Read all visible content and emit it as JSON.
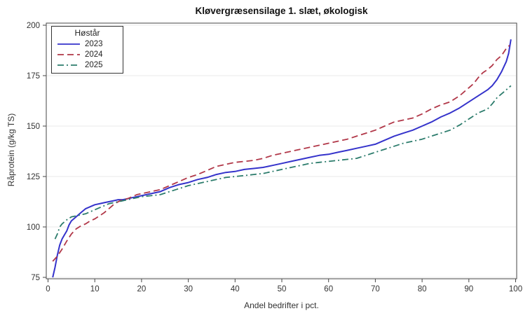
{
  "chart_data": {
    "type": "line",
    "title": "Kløvergræsensilage 1. slæt, økologisk",
    "xlabel": "Andel bedrifter i pct.",
    "ylabel": "Råprotein (g/kg TS)",
    "xlim": [
      0,
      100
    ],
    "ylim": [
      75,
      200
    ],
    "x_ticks": [
      0,
      10,
      20,
      30,
      40,
      50,
      60,
      70,
      80,
      90,
      100
    ],
    "y_ticks": [
      75,
      100,
      125,
      150,
      175,
      200
    ],
    "grid": "horizontal",
    "legend_title": "Høstår",
    "legend_position": "top-left",
    "frame_color": "#454545",
    "gridline_color": "#e8e8e8",
    "series": [
      {
        "name": "2023",
        "color": "#3533cb",
        "dash": "",
        "points": [
          [
            1,
            75
          ],
          [
            1.5,
            80
          ],
          [
            2,
            86
          ],
          [
            2.5,
            91
          ],
          [
            3,
            94
          ],
          [
            3.5,
            96
          ],
          [
            4,
            98
          ],
          [
            4.5,
            101
          ],
          [
            5,
            103
          ],
          [
            6,
            105
          ],
          [
            7,
            107
          ],
          [
            8,
            109
          ],
          [
            9,
            110
          ],
          [
            10,
            111
          ],
          [
            11,
            111.5
          ],
          [
            12,
            112
          ],
          [
            13,
            112.5
          ],
          [
            14,
            113
          ],
          [
            15,
            113.5
          ],
          [
            16,
            113.5
          ],
          [
            17,
            114
          ],
          [
            18,
            114.5
          ],
          [
            19,
            115
          ],
          [
            20,
            115.5
          ],
          [
            22,
            116.5
          ],
          [
            24,
            117.5
          ],
          [
            26,
            119.5
          ],
          [
            28,
            121
          ],
          [
            30,
            122
          ],
          [
            32,
            123.5
          ],
          [
            34,
            124.5
          ],
          [
            36,
            126
          ],
          [
            38,
            127
          ],
          [
            40,
            127.5
          ],
          [
            42,
            128.5
          ],
          [
            44,
            129
          ],
          [
            46,
            129.5
          ],
          [
            48,
            130.5
          ],
          [
            50,
            131.5
          ],
          [
            52,
            132.5
          ],
          [
            54,
            133.5
          ],
          [
            56,
            134.5
          ],
          [
            58,
            135.5
          ],
          [
            60,
            136
          ],
          [
            62,
            137
          ],
          [
            64,
            138
          ],
          [
            66,
            139
          ],
          [
            68,
            140
          ],
          [
            70,
            141
          ],
          [
            72,
            143
          ],
          [
            74,
            145
          ],
          [
            76,
            146.5
          ],
          [
            78,
            148
          ],
          [
            80,
            150
          ],
          [
            82,
            152
          ],
          [
            84,
            154.5
          ],
          [
            86,
            156.5
          ],
          [
            88,
            159
          ],
          [
            90,
            162
          ],
          [
            92,
            165
          ],
          [
            94,
            168
          ],
          [
            95,
            170
          ],
          [
            96,
            173
          ],
          [
            97,
            177
          ],
          [
            98,
            182
          ],
          [
            98.5,
            186
          ],
          [
            99,
            193
          ]
        ]
      },
      {
        "name": "2024",
        "color": "#b13748",
        "dash": "9,5",
        "points": [
          [
            1,
            83
          ],
          [
            2,
            85.5
          ],
          [
            3,
            89
          ],
          [
            4,
            93
          ],
          [
            5,
            96.5
          ],
          [
            6,
            99
          ],
          [
            7,
            100.5
          ],
          [
            8,
            101.5
          ],
          [
            9,
            103
          ],
          [
            10,
            104
          ],
          [
            11,
            105.5
          ],
          [
            12,
            107
          ],
          [
            13,
            109
          ],
          [
            14,
            111
          ],
          [
            15,
            112.5
          ],
          [
            16,
            113.5
          ],
          [
            17,
            114
          ],
          [
            18,
            115
          ],
          [
            19,
            116
          ],
          [
            20,
            116.5
          ],
          [
            22,
            117.5
          ],
          [
            24,
            118.5
          ],
          [
            26,
            120.5
          ],
          [
            28,
            122.5
          ],
          [
            30,
            124.5
          ],
          [
            32,
            126
          ],
          [
            34,
            128
          ],
          [
            36,
            130
          ],
          [
            38,
            131
          ],
          [
            40,
            132
          ],
          [
            42,
            132.5
          ],
          [
            44,
            133
          ],
          [
            46,
            134
          ],
          [
            48,
            135.5
          ],
          [
            50,
            136.5
          ],
          [
            52,
            137.5
          ],
          [
            54,
            138.5
          ],
          [
            56,
            139.5
          ],
          [
            58,
            140.5
          ],
          [
            60,
            141.5
          ],
          [
            62,
            142.5
          ],
          [
            64,
            143.5
          ],
          [
            66,
            145
          ],
          [
            68,
            146.5
          ],
          [
            70,
            148
          ],
          [
            72,
            150
          ],
          [
            74,
            152
          ],
          [
            76,
            153
          ],
          [
            78,
            154
          ],
          [
            80,
            156
          ],
          [
            82,
            158.5
          ],
          [
            84,
            160.5
          ],
          [
            86,
            162
          ],
          [
            88,
            165
          ],
          [
            90,
            169
          ],
          [
            91,
            171
          ],
          [
            92,
            174
          ],
          [
            93,
            176.5
          ],
          [
            94,
            178
          ],
          [
            95,
            180
          ],
          [
            96,
            183
          ],
          [
            97,
            185
          ],
          [
            98,
            188.5
          ],
          [
            98.7,
            190
          ]
        ]
      },
      {
        "name": "2025",
        "color": "#2c7c6c",
        "dash": "9,4,2,4",
        "points": [
          [
            1.5,
            94
          ],
          [
            2,
            96.5
          ],
          [
            2.5,
            100
          ],
          [
            3,
            101.5
          ],
          [
            4,
            103.5
          ],
          [
            5,
            105
          ],
          [
            6,
            105.5
          ],
          [
            7,
            106
          ],
          [
            8,
            106.5
          ],
          [
            9,
            107.5
          ],
          [
            10,
            108.5
          ],
          [
            11,
            109.5
          ],
          [
            12,
            110.5
          ],
          [
            13,
            111.5
          ],
          [
            14,
            112
          ],
          [
            15,
            112.5
          ],
          [
            16,
            113
          ],
          [
            17,
            113.5
          ],
          [
            18,
            114
          ],
          [
            19,
            114.5
          ],
          [
            20,
            115
          ],
          [
            22,
            115.5
          ],
          [
            24,
            116
          ],
          [
            26,
            117.5
          ],
          [
            28,
            119
          ],
          [
            30,
            120.5
          ],
          [
            32,
            121.5
          ],
          [
            34,
            122.5
          ],
          [
            36,
            123.5
          ],
          [
            38,
            124.5
          ],
          [
            40,
            125
          ],
          [
            42,
            125.5
          ],
          [
            44,
            126
          ],
          [
            46,
            126.5
          ],
          [
            48,
            127.5
          ],
          [
            50,
            128.5
          ],
          [
            52,
            129.5
          ],
          [
            54,
            130.5
          ],
          [
            56,
            131.5
          ],
          [
            58,
            132
          ],
          [
            60,
            132.5
          ],
          [
            62,
            133
          ],
          [
            64,
            133.5
          ],
          [
            66,
            134
          ],
          [
            68,
            135.5
          ],
          [
            70,
            137
          ],
          [
            72,
            138.5
          ],
          [
            74,
            140
          ],
          [
            76,
            141.5
          ],
          [
            78,
            142.5
          ],
          [
            80,
            143.5
          ],
          [
            82,
            145
          ],
          [
            84,
            146.5
          ],
          [
            86,
            148
          ],
          [
            88,
            150.5
          ],
          [
            90,
            153.5
          ],
          [
            92,
            156.5
          ],
          [
            94,
            158.5
          ],
          [
            95,
            161
          ],
          [
            96,
            164
          ],
          [
            97,
            166
          ],
          [
            98,
            168
          ],
          [
            99,
            170
          ]
        ]
      }
    ]
  }
}
